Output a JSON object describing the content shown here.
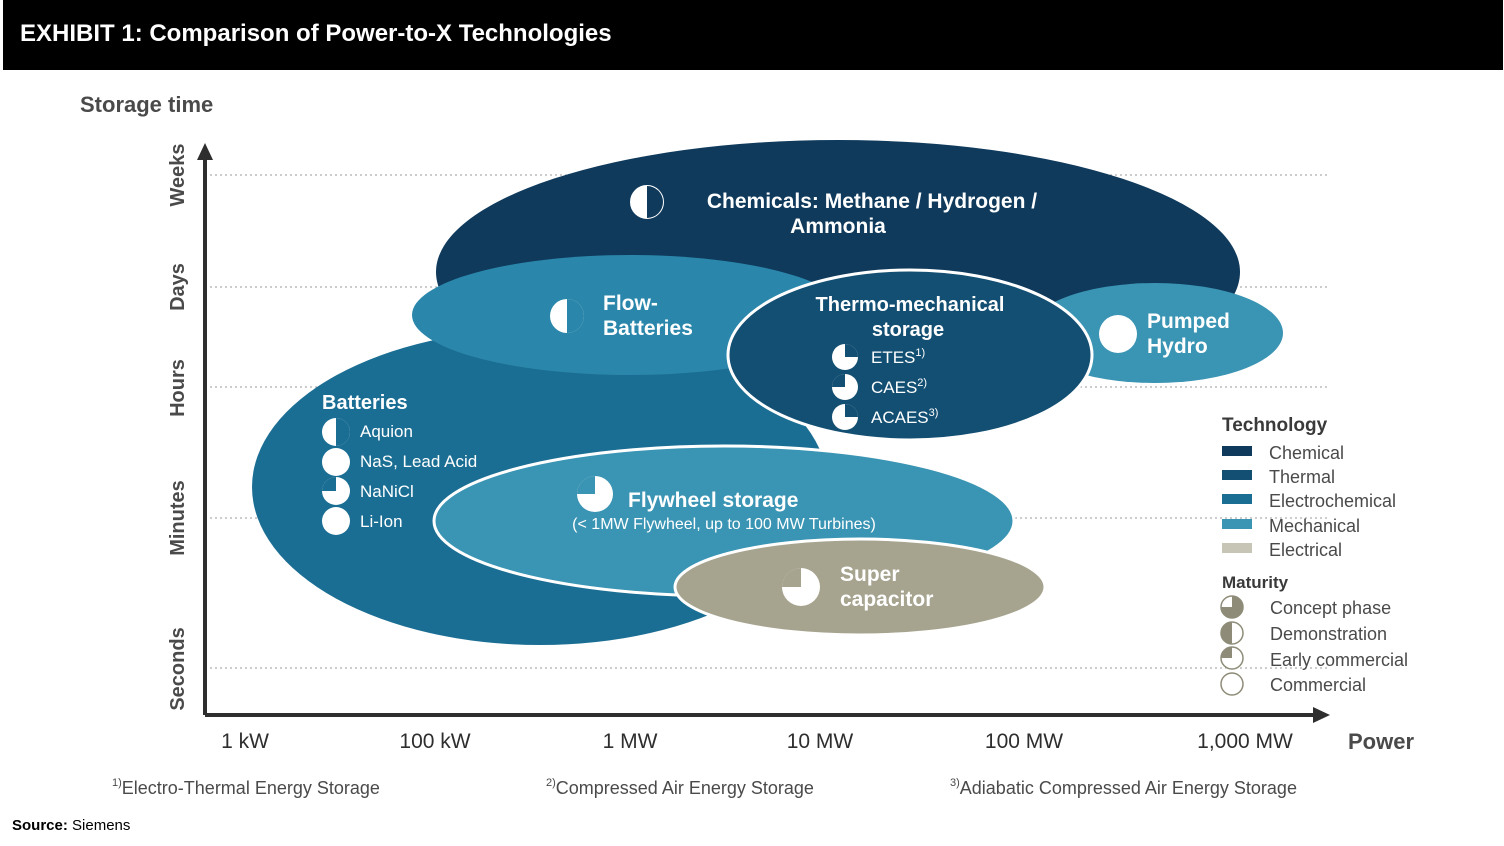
{
  "header": {
    "title": "EXHIBIT 1: Comparison of Power-to-X Technologies"
  },
  "diagram": {
    "y_axis_title": "Storage time",
    "x_axis_title": "Power",
    "y_levels": [
      "Weeks",
      "Days",
      "Hours",
      "Minutes",
      "Seconds"
    ],
    "x_levels": [
      "1 kW",
      "100 kW",
      "1 MW",
      "10 MW",
      "100 MW",
      "1,000 MW"
    ],
    "colors": {
      "chemical": "#0f3a5c",
      "thermal": "#134f72",
      "electrochemical": "#1b6e93",
      "mechanical": "#3a94b3",
      "electrical": "#a6a48f"
    },
    "bubbles": {
      "chemicals": {
        "title_line1": "Chemicals: Methane / Hydrogen /",
        "title_line2": "Ammonia",
        "maturity": "demonstration"
      },
      "flow_batteries": {
        "title_line1": "Flow-",
        "title_line2": "Batteries",
        "maturity": "demonstration"
      },
      "thermo": {
        "title_line1": "Thermo-mechanical",
        "title_line2": "storage",
        "items": [
          {
            "label": "ETES",
            "note": "1)",
            "maturity": "concept"
          },
          {
            "label": "CAES",
            "note": "2)",
            "maturity": "early-commercial"
          },
          {
            "label": "ACAES",
            "note": "3)",
            "maturity": "concept"
          }
        ]
      },
      "pumped_hydro": {
        "title_line1": "Pumped",
        "title_line2": "Hydro",
        "maturity": "commercial"
      },
      "batteries": {
        "title": "Batteries",
        "items": [
          {
            "label": "Aquion",
            "maturity": "demonstration"
          },
          {
            "label": "NaS, Lead Acid",
            "maturity": "commercial"
          },
          {
            "label": "NaNiCl",
            "maturity": "early-commercial"
          },
          {
            "label": "Li-Ion",
            "maturity": "commercial"
          }
        ]
      },
      "flywheel": {
        "title": "Flywheel storage",
        "subtitle": "(< 1MW Flywheel, up to 100 MW Turbines)",
        "maturity": "early-commercial"
      },
      "supercap": {
        "title_line1": "Super",
        "title_line2": "capacitor",
        "maturity": "early-commercial"
      }
    },
    "legend": {
      "technology_title": "Technology",
      "technology_items": [
        "Chemical",
        "Thermal",
        "Electrochemical",
        "Mechanical",
        "Electrical"
      ],
      "maturity_title": "Maturity",
      "maturity_items": [
        "Concept phase",
        "Demonstration",
        "Early commercial",
        "Commercial"
      ]
    },
    "footnotes": [
      {
        "mark": "1)",
        "text": "Electro-Thermal Energy Storage"
      },
      {
        "mark": "2)",
        "text": "Compressed Air Energy Storage"
      },
      {
        "mark": "3)",
        "text": "Adiabatic Compressed Air Energy Storage"
      }
    ]
  },
  "source": {
    "label": "Source:",
    "value": "Siemens"
  }
}
